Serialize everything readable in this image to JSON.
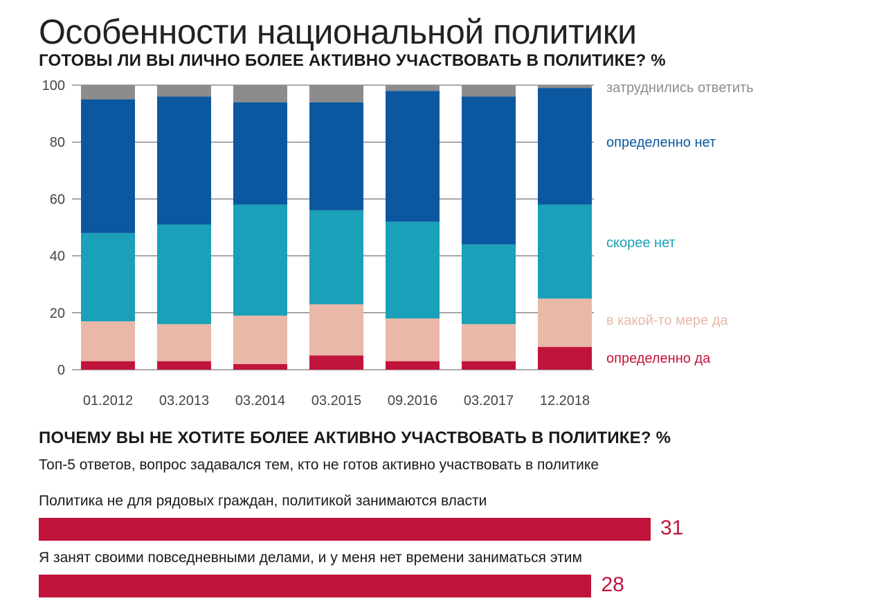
{
  "title": "Особенности национальной политики",
  "chart_data": [
    {
      "type": "bar",
      "stacked": true,
      "title": "ГОТОВЫ ЛИ ВЫ ЛИЧНО БОЛЕЕ АКТИВНО УЧАСТВОВАТЬ В ПОЛИТИКЕ? %",
      "categories": [
        "01.2012",
        "03.2013",
        "03.2014",
        "03.2015",
        "09.2016",
        "03.2017",
        "12.2018"
      ],
      "ylim": [
        0,
        100
      ],
      "yticks": [
        0,
        20,
        40,
        60,
        80,
        100
      ],
      "legend_position": "right",
      "series": [
        {
          "name": "определенно да",
          "color": "#c0143c",
          "values": [
            3,
            3,
            2,
            5,
            3,
            3,
            8
          ]
        },
        {
          "name": "в какой-то мере да",
          "color": "#e9b8a8",
          "values": [
            14,
            13,
            17,
            18,
            15,
            13,
            17
          ]
        },
        {
          "name": "скорее нет",
          "color": "#1aa0b8",
          "values": [
            31,
            35,
            39,
            33,
            34,
            28,
            33
          ]
        },
        {
          "name": "определенно нет",
          "color": "#0b58a0",
          "values": [
            47,
            45,
            36,
            38,
            46,
            52,
            41
          ]
        },
        {
          "name": "затруднились ответить",
          "color": "#8c8c8c",
          "values": [
            5,
            4,
            6,
            6,
            2,
            4,
            1
          ]
        }
      ]
    },
    {
      "type": "bar",
      "orientation": "horizontal",
      "title": "ПОЧЕМУ ВЫ НЕ ХОТИТЕ БОЛЕЕ АКТИВНО УЧАСТВОВАТЬ В ПОЛИТИКЕ? %",
      "subtitle": "Топ-5 ответов, вопрос задавался тем, кто не готов активно участвовать в политике",
      "color": "#c0143c",
      "items": [
        {
          "label": "Политика не для рядовых граждан, политикой занимаются власти",
          "value": 31
        },
        {
          "label": "Я занят своими повседневными делами, и у меня нет времени заниматься этим",
          "value": 28
        }
      ]
    }
  ]
}
